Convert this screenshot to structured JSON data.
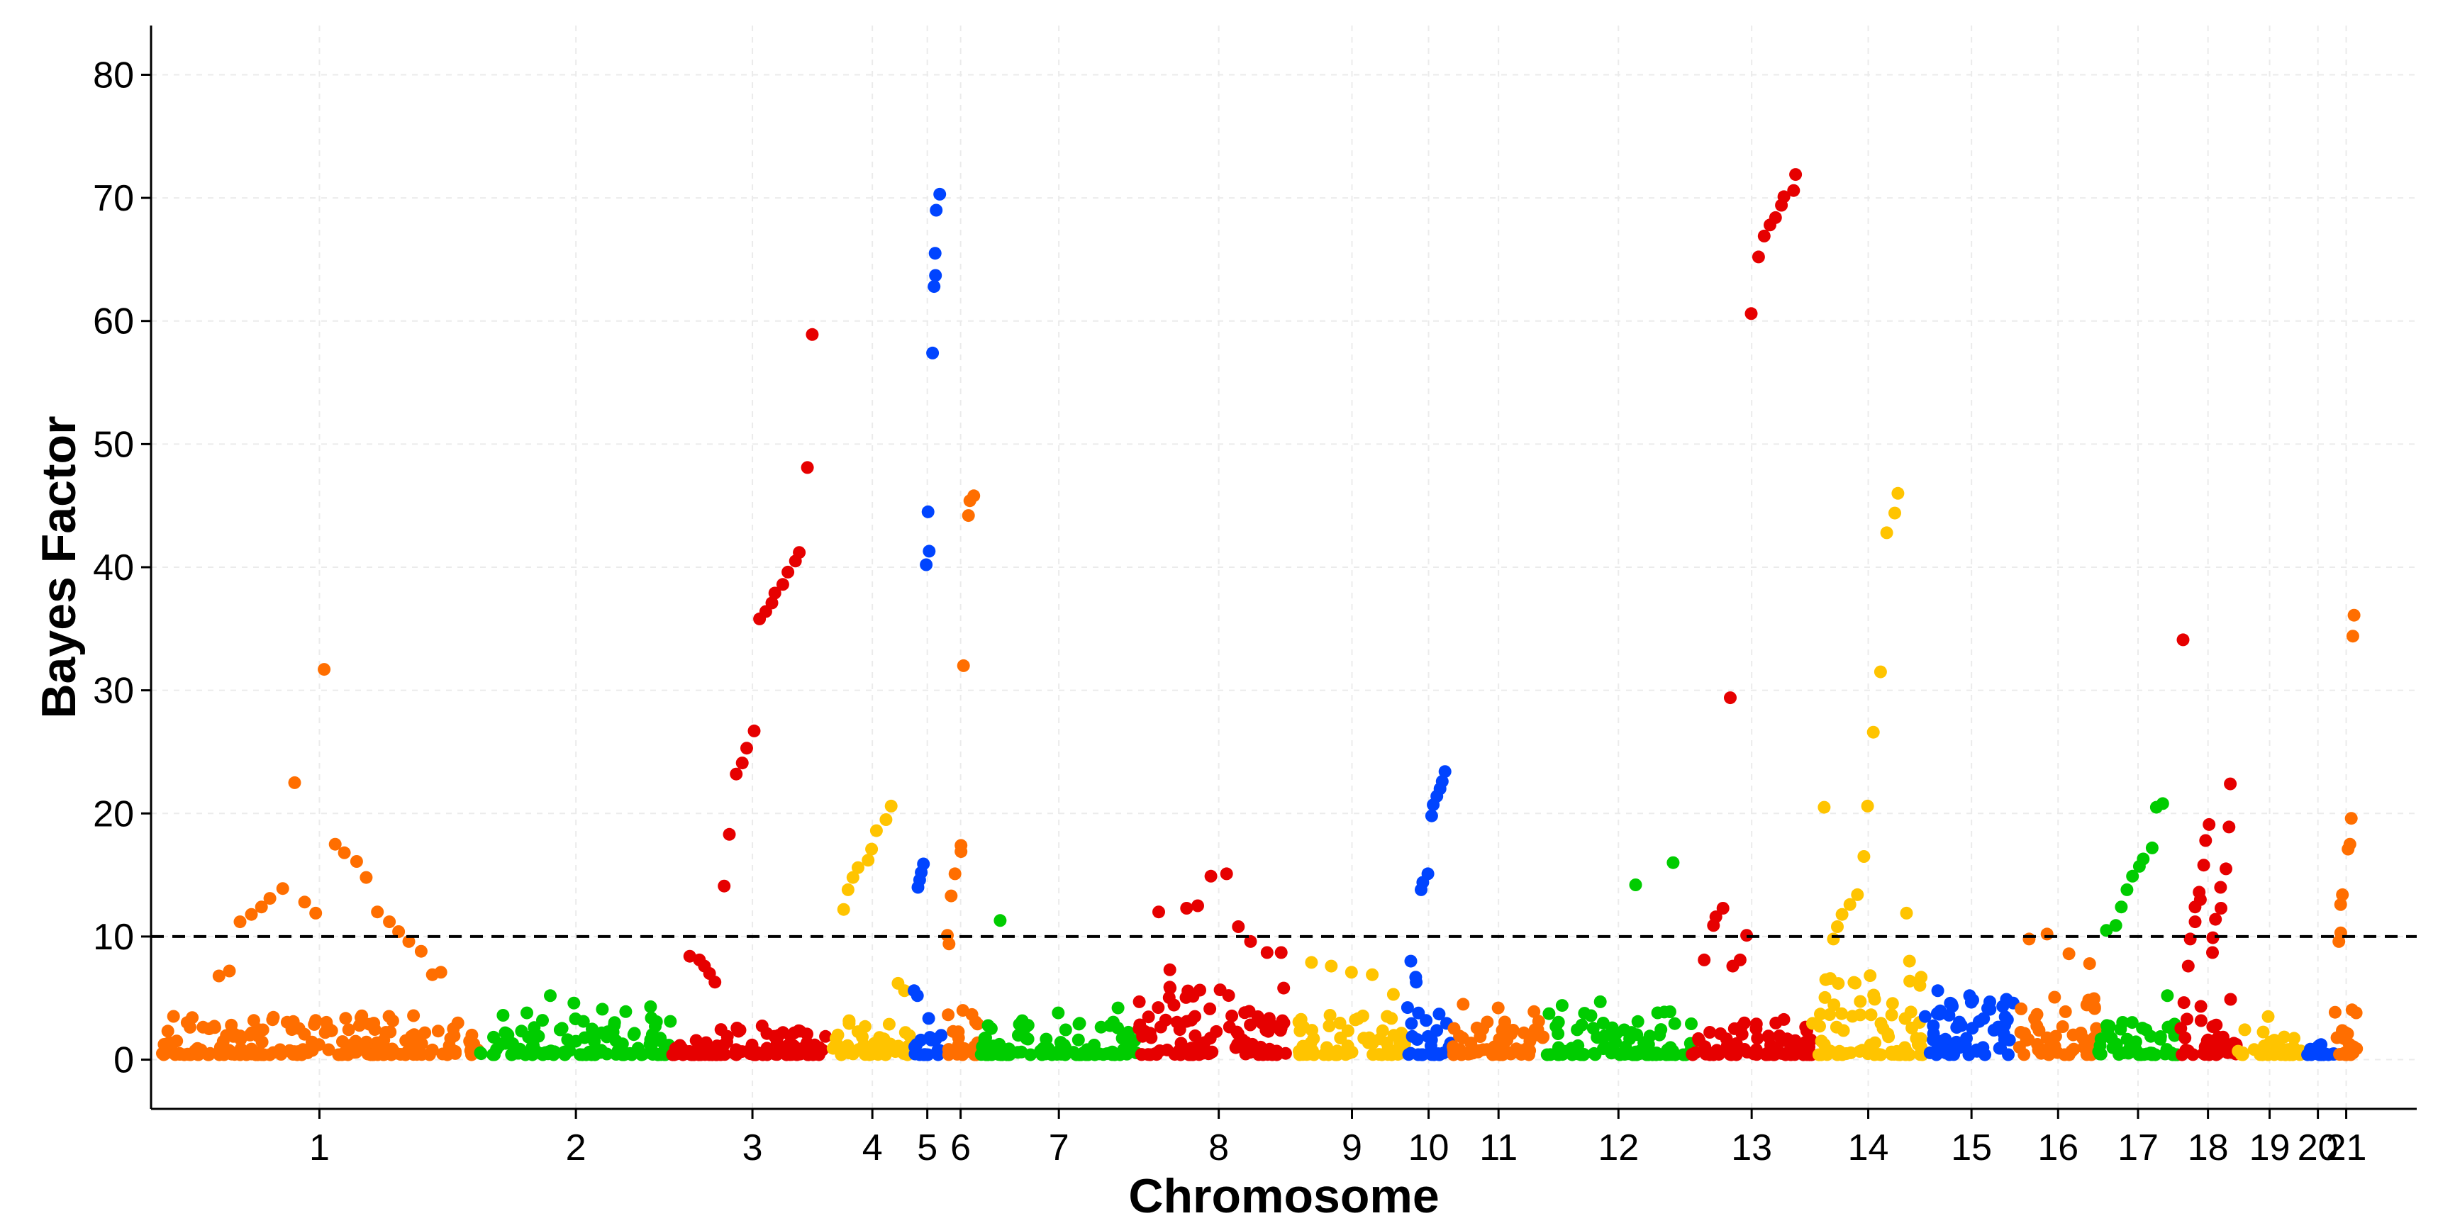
{
  "chart_data": {
    "type": "scatter",
    "subtype": "manhattan",
    "title": "",
    "xlabel": "Chromosome",
    "ylabel": "Bayes Factor",
    "ylim": [
      -4,
      84
    ],
    "yticks": [
      0,
      10,
      20,
      30,
      40,
      50,
      60,
      70,
      80
    ],
    "ytick_labels": [
      "0",
      "10",
      "20",
      "30",
      "40",
      "50",
      "60",
      "70",
      "80"
    ],
    "threshold": 10,
    "grid": true,
    "legend": "none",
    "colors": {
      "orange": "#ff6e00",
      "green": "#00cc00",
      "red": "#e60000",
      "yellow": "#ffc400",
      "blue": "#0044ff"
    },
    "chromosomes": [
      {
        "label": "1",
        "color": "orange",
        "max_baseline": 3.2,
        "peaks": [
          0.7,
          2.5,
          6.8,
          7.2,
          11.2,
          11.8,
          12.4,
          13.1,
          13.9,
          22.5,
          12.8,
          11.9,
          31.7,
          17.5,
          16.8,
          16.1,
          14.8,
          12.0,
          11.2,
          10.4,
          9.6,
          8.8,
          6.9,
          7.1
        ]
      },
      {
        "label": "2",
        "color": "green",
        "max_baseline": 3.0,
        "peaks": [
          3.6,
          3.8,
          5.2,
          4.6,
          4.1,
          3.9,
          4.3
        ]
      },
      {
        "label": "3",
        "color": "red",
        "max_baseline": 2.5,
        "peaks": [
          8.4,
          8.1,
          7.6,
          7.0,
          6.3,
          14.1,
          18.3,
          23.2,
          24.1,
          25.3,
          26.7,
          35.8,
          36.4,
          37.1,
          37.9,
          38.6,
          39.6,
          40.5,
          41.2,
          48.1,
          58.9
        ]
      },
      {
        "label": "4",
        "color": "yellow",
        "max_baseline": 3.0,
        "peaks": [
          12.2,
          13.8,
          14.8,
          15.6,
          16.2,
          17.1,
          18.6,
          19.5,
          20.6,
          6.2,
          5.6
        ]
      },
      {
        "label": "5",
        "color": "blue",
        "max_baseline": 4.0,
        "peaks": [
          5.6,
          5.2,
          14.0,
          14.6,
          15.2,
          15.9,
          40.2,
          41.3,
          44.5,
          57.4,
          62.8,
          63.7,
          65.5,
          69.0,
          70.3
        ]
      },
      {
        "label": "6",
        "color": "orange",
        "max_baseline": 5.0,
        "peaks": [
          10.1,
          9.4,
          13.3,
          15.1,
          16.9,
          17.4,
          32.0,
          44.2,
          45.4,
          45.8
        ]
      },
      {
        "label": "7",
        "color": "green",
        "max_baseline": 2.8,
        "peaks": [
          11.3,
          3.8,
          4.2
        ]
      },
      {
        "label": "8",
        "color": "red",
        "max_baseline": 5.5,
        "peaks": [
          12.0,
          7.3,
          12.3,
          12.5,
          14.9,
          15.1,
          10.8,
          9.6,
          8.7,
          8.7
        ]
      },
      {
        "label": "9",
        "color": "yellow",
        "max_baseline": 3.5,
        "peaks": [
          7.9,
          7.6,
          7.1,
          6.9,
          5.3
        ]
      },
      {
        "label": "10",
        "color": "blue",
        "max_baseline": 4.0,
        "peaks": [
          8.0,
          6.7,
          6.3,
          13.8,
          14.4,
          15.1,
          19.8,
          20.7,
          21.4,
          22.0,
          22.6,
          23.4
        ]
      },
      {
        "label": "11",
        "color": "orange",
        "max_baseline": 3.2,
        "peaks": [
          4.5,
          4.2,
          3.9
        ]
      },
      {
        "label": "12",
        "color": "green",
        "max_baseline": 3.6,
        "peaks": [
          4.4,
          4.7,
          14.2,
          16.0
        ]
      },
      {
        "label": "13",
        "color": "red",
        "max_baseline": 3.0,
        "peaks": [
          8.1,
          10.9,
          11.6,
          12.3,
          29.4,
          7.6,
          8.1,
          10.1,
          60.6,
          65.2,
          66.9,
          67.8,
          68.4,
          69.4,
          70.1,
          70.6,
          71.9
        ]
      },
      {
        "label": "14",
        "color": "yellow",
        "max_baseline": 6.5,
        "peaks": [
          20.5,
          9.8,
          10.8,
          11.8,
          12.6,
          13.4,
          16.5,
          20.6,
          26.6,
          31.5,
          42.8,
          44.4,
          46.0,
          11.9,
          8.0
        ]
      },
      {
        "label": "15",
        "color": "blue",
        "max_baseline": 4.5,
        "peaks": [
          5.6,
          5.2,
          4.9
        ]
      },
      {
        "label": "16",
        "color": "orange",
        "max_baseline": 5.0,
        "peaks": [
          9.8,
          10.2,
          8.6,
          7.8
        ]
      },
      {
        "label": "17",
        "color": "green",
        "max_baseline": 3.0,
        "peaks": [
          10.5,
          10.9,
          12.4,
          13.8,
          14.9,
          15.7,
          16.3,
          17.2,
          20.5,
          20.8,
          5.2
        ]
      },
      {
        "label": "18",
        "color": "red",
        "max_baseline": 4.5,
        "peaks": [
          34.1,
          7.6,
          9.8,
          11.2,
          12.4,
          13.0,
          13.6,
          15.8,
          17.8,
          19.1,
          8.7,
          9.9,
          11.4,
          12.3,
          14.0,
          15.5,
          18.9,
          22.4
        ]
      },
      {
        "label": "19",
        "color": "yellow",
        "max_baseline": 2.2,
        "peaks": [
          3.5
        ]
      },
      {
        "label": "20",
        "color": "blue",
        "max_baseline": 0.9,
        "peaks": []
      },
      {
        "label": "21",
        "color": "orange",
        "max_baseline": 4.5,
        "peaks": [
          9.6,
          10.3,
          12.6,
          13.4,
          17.1,
          17.5,
          19.6,
          34.4,
          36.1
        ]
      }
    ]
  }
}
